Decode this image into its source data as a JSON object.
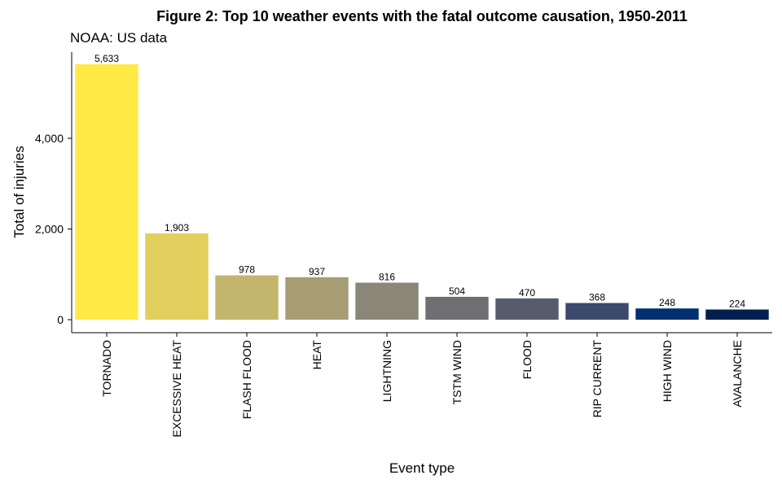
{
  "chart_data": {
    "type": "bar",
    "title": "Figure 2: Top 10 weather events with the fatal outcome causation, 1950-2011",
    "subtitle": "NOAA: US data",
    "xlabel": "Event type",
    "ylabel": "Total of injuries",
    "categories": [
      "TORNADO",
      "EXCESSIVE HEAT",
      "FLASH FLOOD",
      "HEAT",
      "LIGHTNING",
      "TSTM WIND",
      "FLOOD",
      "RIP CURRENT",
      "HIGH WIND",
      "AVALANCHE"
    ],
    "values": [
      5633,
      1903,
      978,
      937,
      816,
      504,
      470,
      368,
      248,
      224
    ],
    "value_labels": [
      "5,633",
      "1,903",
      "978",
      "937",
      "816",
      "504",
      "470",
      "368",
      "248",
      "224"
    ],
    "colors": [
      "#FFE945",
      "#E2CF5D",
      "#C4B56C",
      "#A69D75",
      "#8A8779",
      "#6F6F73",
      "#575C6D",
      "#3B496C",
      "#00306F",
      "#00204D"
    ],
    "yticks": [
      0,
      2000,
      4000
    ],
    "ytick_labels": [
      "0",
      "2,000",
      "4,000"
    ],
    "ylim": [
      0,
      5633
    ],
    "grid": false,
    "legend": "none"
  }
}
